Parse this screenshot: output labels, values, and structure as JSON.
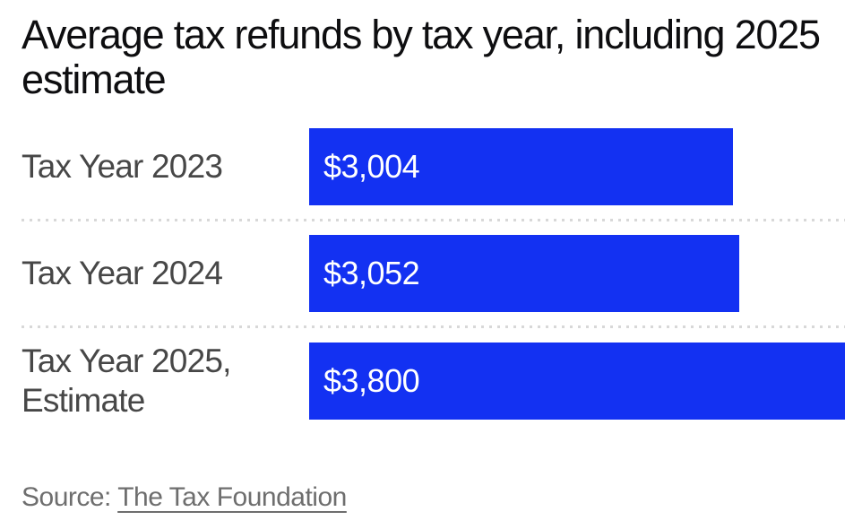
{
  "title": "Average tax refunds by tax year, including 2025 estimate",
  "chart_data": {
    "type": "bar",
    "orientation": "horizontal",
    "title": "Average tax refunds by tax year, including 2025 estimate",
    "categories": [
      "Tax Year 2023",
      "Tax Year 2024",
      "Tax Year 2025, Estimate"
    ],
    "values": [
      3004,
      3052,
      3800
    ],
    "value_labels": [
      "$3,004",
      "$3,052",
      "$3,800"
    ],
    "xlim": [
      0,
      3800
    ],
    "xlabel": "",
    "ylabel": "",
    "grid": false,
    "legend": false,
    "bar_color": "#1331f2",
    "value_label_color": "#ffffff",
    "category_label_color": "#474747"
  },
  "source": {
    "prefix": "Source: ",
    "link_text": "The Tax Foundation"
  }
}
